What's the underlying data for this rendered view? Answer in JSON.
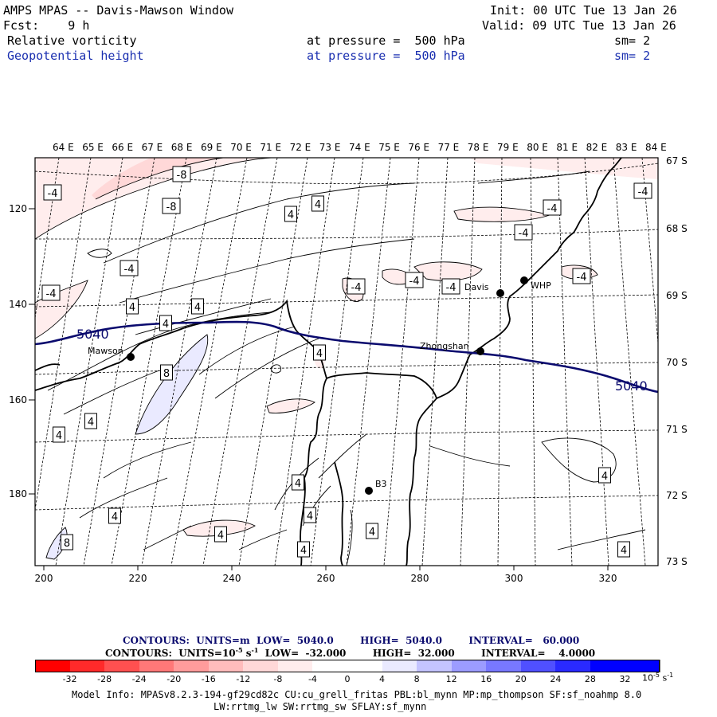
{
  "header": {
    "title": "AMPS MPAS -- Davis-Mawson Window",
    "init": "Init: 00 UTC Tue 13 Jan 26",
    "fcst": "Fcst:    9 h",
    "valid": "Valid: 09 UTC Tue 13 Jan 26",
    "field1": {
      "name": "Relative vorticity",
      "level": "at pressure =  500 hPa",
      "smooth": "sm= 2"
    },
    "field2": {
      "name": "Geopotential height",
      "level": "at pressure =  500 hPa",
      "smooth": "sm= 2"
    }
  },
  "map": {
    "top_labels": [
      "64 E",
      "65 E",
      "66 E",
      "67 E",
      "68 E",
      "69 E",
      "70 E",
      "71 E",
      "72 E",
      "73 E",
      "74 E",
      "75 E",
      "76 E",
      "77 E",
      "78 E",
      "79 E",
      "80 E",
      "81 E",
      "82 E",
      "83 E",
      "84 E"
    ],
    "right_labels": [
      "67 S",
      "68 S",
      "69 S",
      "70 S",
      "71 S",
      "72 S",
      "73 S"
    ],
    "left_labels": [
      "120",
      "140",
      "160",
      "180"
    ],
    "bottom_labels": [
      "200",
      "220",
      "240",
      "260",
      "280",
      "300",
      "320"
    ],
    "stations": [
      "Mawson",
      "Zhongshan",
      "Davis",
      "WHP",
      "B3"
    ],
    "height_labels": [
      "5040",
      "5040"
    ],
    "vort_labels": [
      "-4",
      "-8",
      "-8",
      "4",
      "4",
      "-4",
      "-4",
      "-4",
      "-4",
      "4",
      "4",
      "-4",
      "-4",
      "-4",
      "-4",
      "4",
      "4",
      "8",
      "4",
      "4",
      "4",
      "4",
      "4",
      "4",
      "4",
      "4",
      "8",
      "4",
      "-4",
      "4"
    ]
  },
  "legend": {
    "contours1": "CONTOURS:  UNITS=m  LOW=  5040.0        HIGH=  5040.0        INTERVAL=   60.000",
    "contours2_a": "CONTOURS:  UNITS=10",
    "contours2_exp": "-5",
    "contours2_b": " s",
    "contours2_exp2": "-1",
    "contours2_c": "  LOW=  -32.000        HIGH=  32.000        INTERVAL=    4.0000",
    "colorbar_labels": [
      "-32",
      "-28",
      "-24",
      "-20",
      "-16",
      "-12",
      "-8",
      "-4",
      "0",
      "4",
      "8",
      "12",
      "16",
      "20",
      "24",
      "28",
      "32"
    ],
    "colorbar_colors": [
      "#ff0000",
      "#ff2a2a",
      "#ff5050",
      "#ff7878",
      "#ff9c9c",
      "#ffbcbc",
      "#ffd8d8",
      "#ffeded",
      "#ffffff",
      "#ffffff",
      "#eaeaff",
      "#c4c4ff",
      "#9c9cff",
      "#7878ff",
      "#5050ff",
      "#2a2aff",
      "#0000ff",
      "#0000ff"
    ],
    "units_a": "10",
    "units_exp": "-5",
    "units_b": " s",
    "units_exp2": "-1"
  },
  "footer": {
    "line1": "Model Info: MPASv8.2.3-194-gf29cd82c CU:cu_grell_fritas PBL:bl_mynn MP:mp_thompson SF:sf_noahmp 8.0",
    "line2": "LW:rrtmg_lw SW:rrtmg_sw SFLAY:sf_mynn"
  },
  "colors": {
    "height_contour": "#0a0a6e",
    "header_blue": "#1a2fb0"
  }
}
